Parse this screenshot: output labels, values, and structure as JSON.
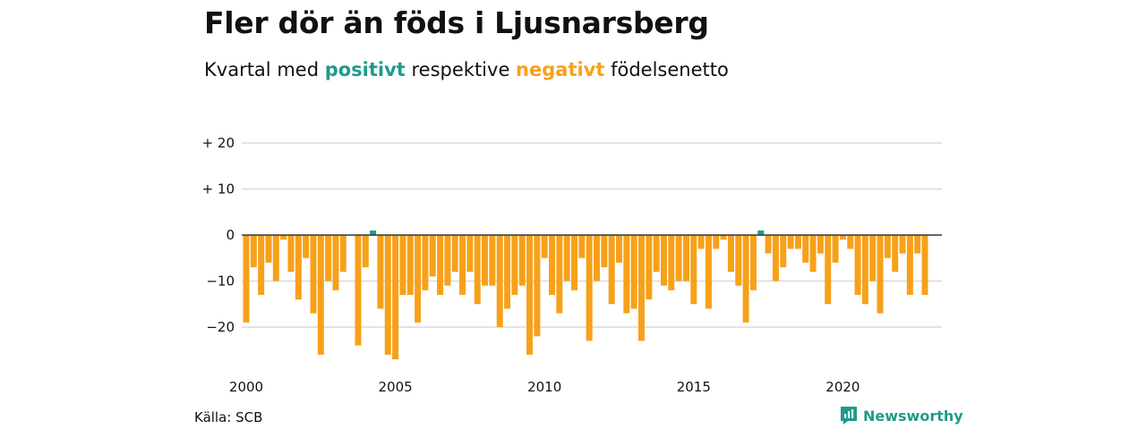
{
  "title": "Fler dör än föds i Ljusnarsberg",
  "subtitle": {
    "prefix": "Kvartal med ",
    "positive_word": "positivt",
    "middle": " respektive ",
    "negative_word": "negativt",
    "suffix": " födelsenetto"
  },
  "source": "Källa: SCB",
  "brand": {
    "name": "Newsworthy",
    "icon": "newsworthy-logo-icon"
  },
  "colors": {
    "positive": "#1f9b8a",
    "negative": "#f7a11a",
    "grid": "#d9d9d9",
    "zero_line": "#333333"
  },
  "chart_data": {
    "type": "bar",
    "title": "Fler dör än föds i Ljusnarsberg",
    "subtitle": "Kvartal med positivt respektive negativt födelsenetto",
    "x_start": "2000 Q1",
    "x_step": "quarter",
    "ylim": [
      -28,
      20
    ],
    "y_ticks": [
      {
        "value": 20,
        "label": "+ 20"
      },
      {
        "value": 10,
        "label": "+ 10"
      },
      {
        "value": 0,
        "label": "0"
      },
      {
        "value": -10,
        "label": "−10"
      },
      {
        "value": -20,
        "label": "−20"
      }
    ],
    "x_ticks": [
      {
        "index": 0,
        "label": "2000"
      },
      {
        "index": 20,
        "label": "2005"
      },
      {
        "index": 40,
        "label": "2010"
      },
      {
        "index": 60,
        "label": "2015"
      },
      {
        "index": 80,
        "label": "2020"
      }
    ],
    "grid": true,
    "values": [
      -19,
      -7,
      -13,
      -6,
      -10,
      -1,
      -8,
      -14,
      -5,
      -17,
      -26,
      -10,
      -12,
      -8,
      0,
      -24,
      -7,
      1,
      -16,
      -26,
      -27,
      -13,
      -13,
      -19,
      -12,
      -9,
      -13,
      -11,
      -8,
      -13,
      -8,
      -15,
      -11,
      -11,
      -20,
      -16,
      -13,
      -11,
      -26,
      -22,
      -5,
      -13,
      -17,
      -10,
      -12,
      -5,
      -23,
      -10,
      -7,
      -15,
      -6,
      -17,
      -16,
      -23,
      -14,
      -8,
      -11,
      -12,
      -10,
      -10,
      -15,
      -3,
      -16,
      -3,
      -1,
      -8,
      -11,
      -19,
      -12,
      1,
      -4,
      -10,
      -7,
      -3,
      -3,
      -6,
      -8,
      -4,
      -15,
      -6,
      -1,
      -3,
      -13,
      -15,
      -10,
      -17,
      -5,
      -8,
      -4,
      -13,
      -4,
      -13
    ]
  }
}
